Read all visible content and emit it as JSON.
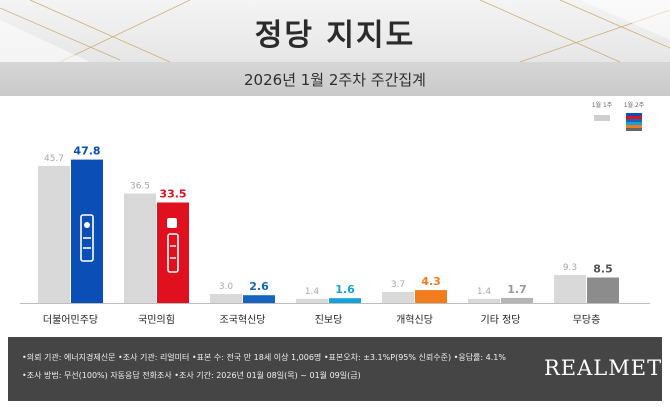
{
  "header": {
    "title": "정당 지지도",
    "subtitle": "2026년 1월 2주차 주간집계"
  },
  "legend": {
    "prev_label": "1월 1주",
    "cur_label": "1월 2주",
    "cur_swatch_colors": [
      "#0b4fb6",
      "#e1101f",
      "#1565c0",
      "#18a0d8",
      "#f07c1e",
      "#666666"
    ]
  },
  "chart_data": {
    "type": "bar",
    "categories": [
      "더불어민주당",
      "국민의힘",
      "조국혁신당",
      "진보당",
      "개혁신당",
      "기타 정당",
      "무당층"
    ],
    "series": [
      {
        "name": "1월 1주",
        "values": [
          45.7,
          36.5,
          3.0,
          1.4,
          3.7,
          1.4,
          9.3
        ],
        "color": "#d9d9d9"
      },
      {
        "name": "1월 2주",
        "values": [
          47.8,
          33.5,
          2.6,
          1.6,
          4.3,
          1.7,
          8.5
        ],
        "colors": [
          "#0b4fb6",
          "#e1101f",
          "#1565c0",
          "#18a0d8",
          "#f07c1e",
          "#b5b5b5",
          "#8c8c8c"
        ]
      }
    ],
    "value_label_colors": [
      "#0b4fb6",
      "#e1101f",
      "#1565c0",
      "#18a0d8",
      "#f07c1e",
      "#9a9a9a",
      "#555555"
    ],
    "xlabel": "",
    "ylabel": "",
    "ylim": [
      0,
      50
    ],
    "grid": false,
    "legend_position": "top-right"
  },
  "footer": {
    "line1": "•의뢰 기관: 에너지경제신문 •조사 기관: 리얼미터 •표본 수: 전국 만 18세 이상 1,006명 •표본오차: ±3.1%P(95% 신뢰수준) •응답률: 4.1%",
    "line2": "•조사 방법: 무선(100%) 자동응답 전화조사 •조사 기간: 2026년 01월 08일(목) ~ 01월 09일(금)",
    "brand": "REALMETER"
  }
}
